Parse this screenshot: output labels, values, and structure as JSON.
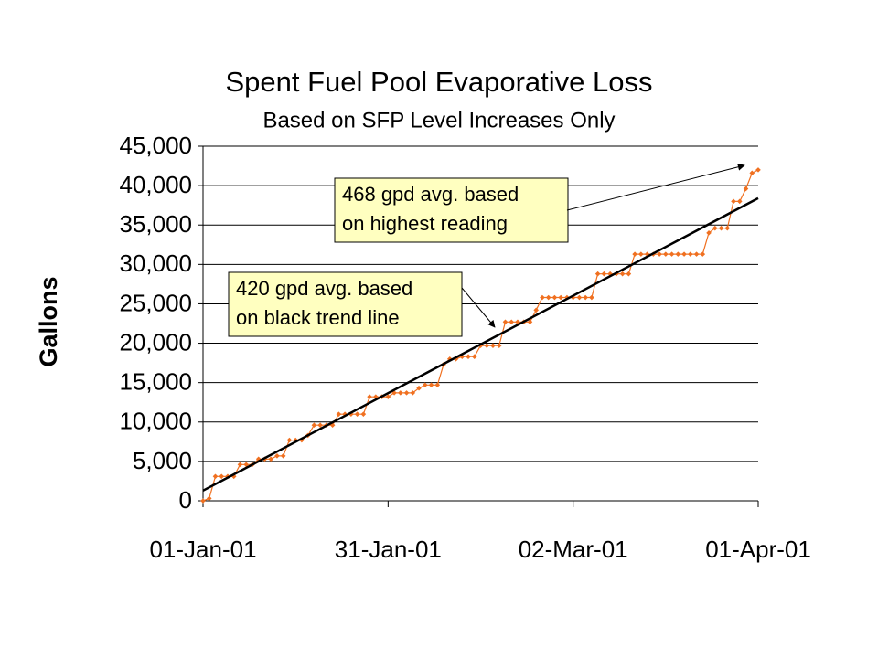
{
  "chart_data": {
    "type": "line",
    "title": "Spent Fuel Pool Evaporative Loss",
    "subtitle": "Based on SFP Level Increases Only",
    "y_label": "Gallons",
    "xlim": [
      "2001-01-01",
      "2001-04-01"
    ],
    "xticks": [
      {
        "value": "2001-01-01",
        "label": "01-Jan-01"
      },
      {
        "value": "2001-01-31",
        "label": "31-Jan-01"
      },
      {
        "value": "2001-03-02",
        "label": "02-Mar-01"
      },
      {
        "value": "2001-04-01",
        "label": "01-Apr-01"
      }
    ],
    "ylim": [
      0,
      45000
    ],
    "yticks": [
      0,
      {
        "value": 5000,
        "label": "5,000"
      },
      {
        "value": 10000,
        "label": "10,000"
      },
      {
        "value": 15000,
        "label": "15,000"
      },
      {
        "value": 20000,
        "label": "20,000"
      },
      {
        "value": 25000,
        "label": "25,000"
      },
      {
        "value": 30000,
        "label": "30,000"
      },
      {
        "value": 35000,
        "label": "35,000"
      },
      {
        "value": 40000,
        "label": "40,000"
      },
      {
        "value": 45000,
        "label": "45,000"
      }
    ],
    "grid": true,
    "series": [
      {
        "color": "#f07020",
        "marker": "diamond",
        "x": [
          "2001-01-01",
          "2001-01-02",
          "2001-01-03",
          "2001-01-04",
          "2001-01-05",
          "2001-01-06",
          "2001-01-07",
          "2001-01-08",
          "2001-01-09",
          "2001-01-10",
          "2001-01-11",
          "2001-01-12",
          "2001-01-13",
          "2001-01-14",
          "2001-01-15",
          "2001-01-16",
          "2001-01-17",
          "2001-01-18",
          "2001-01-19",
          "2001-01-20",
          "2001-01-21",
          "2001-01-22",
          "2001-01-23",
          "2001-01-24",
          "2001-01-25",
          "2001-01-26",
          "2001-01-27",
          "2001-01-28",
          "2001-01-29",
          "2001-01-30",
          "2001-01-31",
          "2001-02-01",
          "2001-02-02",
          "2001-02-03",
          "2001-02-04",
          "2001-02-05",
          "2001-02-06",
          "2001-02-07",
          "2001-02-08",
          "2001-02-09",
          "2001-02-10",
          "2001-02-11",
          "2001-02-12",
          "2001-02-13",
          "2001-02-14",
          "2001-02-15",
          "2001-02-16",
          "2001-02-17",
          "2001-02-18",
          "2001-02-19",
          "2001-02-20",
          "2001-02-21",
          "2001-02-22",
          "2001-02-23",
          "2001-02-24",
          "2001-02-25",
          "2001-02-26",
          "2001-02-27",
          "2001-02-28",
          "2001-03-01",
          "2001-03-02",
          "2001-03-03",
          "2001-03-04",
          "2001-03-05",
          "2001-03-06",
          "2001-03-07",
          "2001-03-08",
          "2001-03-09",
          "2001-03-10",
          "2001-03-11",
          "2001-03-12",
          "2001-03-13",
          "2001-03-14",
          "2001-03-15",
          "2001-03-16",
          "2001-03-17",
          "2001-03-18",
          "2001-03-19",
          "2001-03-20",
          "2001-03-21",
          "2001-03-22",
          "2001-03-23",
          "2001-03-24",
          "2001-03-25",
          "2001-03-26",
          "2001-03-27",
          "2001-03-28",
          "2001-03-29",
          "2001-03-30",
          "2001-03-31",
          "2001-04-01"
        ],
        "values": [
          0,
          300,
          3100,
          3100,
          3100,
          3100,
          4600,
          4600,
          4600,
          5300,
          5300,
          5300,
          5700,
          5700,
          7700,
          7700,
          7700,
          8300,
          9600,
          9600,
          9600,
          9600,
          11000,
          11000,
          11000,
          11000,
          11000,
          13200,
          13200,
          13200,
          13200,
          13700,
          13700,
          13700,
          13700,
          14300,
          14700,
          14700,
          14700,
          17300,
          18000,
          18000,
          18300,
          18300,
          18300,
          19700,
          19700,
          19700,
          19700,
          22700,
          22700,
          22700,
          22700,
          22700,
          24200,
          25800,
          25800,
          25800,
          25800,
          25800,
          25800,
          25800,
          25800,
          25800,
          28800,
          28800,
          28800,
          28800,
          28800,
          28800,
          31300,
          31300,
          31300,
          31300,
          31300,
          31300,
          31300,
          31300,
          31300,
          31300,
          31300,
          31300,
          34000,
          34600,
          34600,
          34600,
          38000,
          38000,
          39600,
          41600,
          42000
        ]
      },
      {
        "color": "#000000",
        "marker": "none",
        "x": [
          "2001-01-01",
          "2001-04-01"
        ],
        "values": [
          1300,
          38400
        ]
      }
    ],
    "annotations": [
      {
        "lines": [
          "468 gpd avg. based",
          "on highest reading"
        ]
      },
      {
        "lines": [
          "420 gpd avg. based",
          "on black trend line"
        ]
      }
    ]
  }
}
